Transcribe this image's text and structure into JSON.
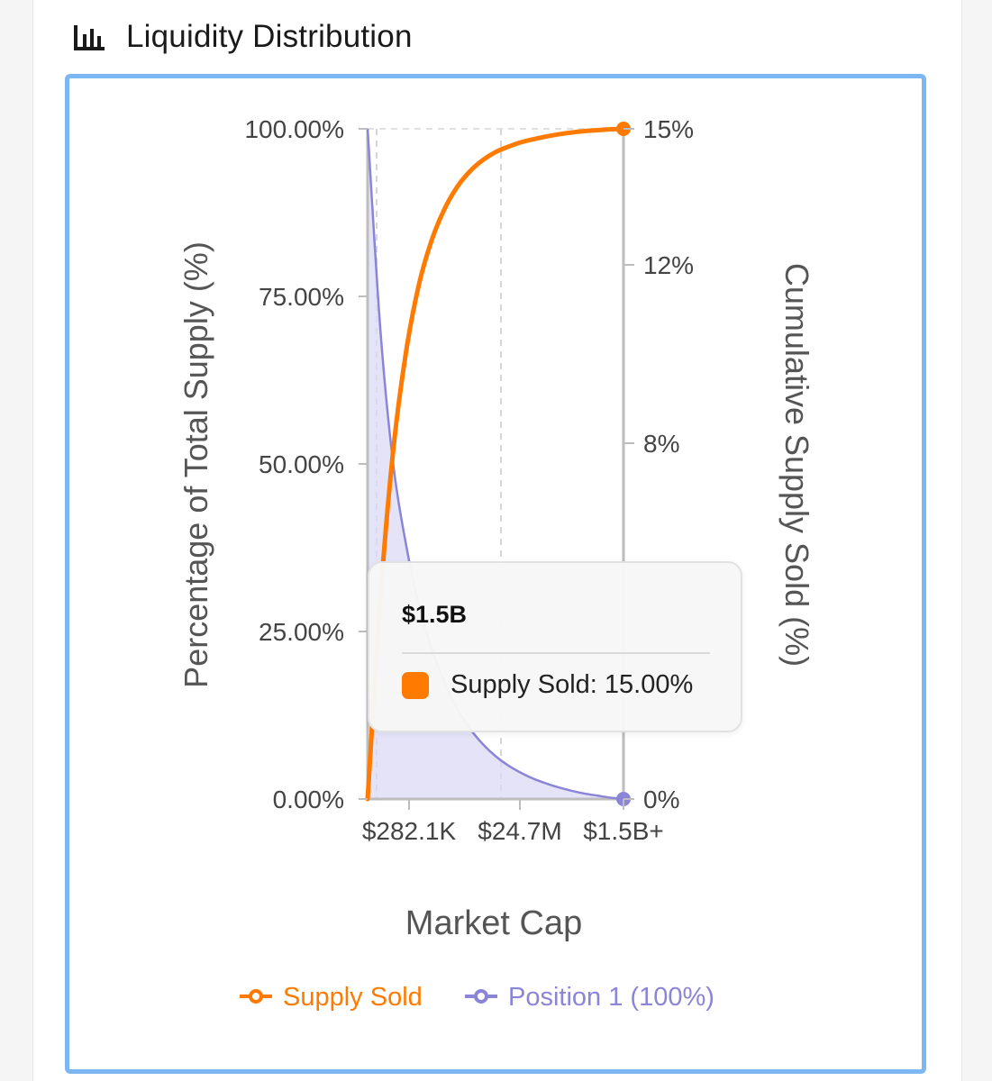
{
  "header": {
    "title": "Liquidity Distribution",
    "icon": "bar-chart-icon"
  },
  "tooltip": {
    "title": "$1.5B",
    "series_label": "Supply Sold: 15.00%",
    "swatch_color": "#ff7a00"
  },
  "colors": {
    "supply": "#ff7a00",
    "position": "#8b85d8",
    "position_fill": "#dcd9f6",
    "border": "#7db7f2"
  },
  "chart_data": {
    "type": "line",
    "xlabel": "Market Cap",
    "ylabel_left": "Percentage of Total Supply (%)",
    "ylabel_right": "Cumulative Supply Sold (%)",
    "x_ticks": [
      "$282.1K",
      "$24.7M",
      "$1.5B+"
    ],
    "y_left_ticks": [
      "0.00%",
      "25.00%",
      "50.00%",
      "75.00%",
      "100.00%"
    ],
    "y_right_ticks": [
      "0%",
      "8%",
      "12%",
      "15%"
    ],
    "y_left_range": [
      0,
      100
    ],
    "y_right_range": [
      0,
      15
    ],
    "x": [
      0,
      0.05,
      0.1,
      0.15,
      0.2,
      0.25,
      0.3,
      0.35,
      0.4,
      0.45,
      0.5,
      0.55,
      0.6,
      0.65,
      0.7,
      0.75,
      0.8,
      0.85,
      0.9,
      0.95,
      1.0
    ],
    "series": [
      {
        "name": "Supply Sold",
        "axis": "right",
        "values": [
          0,
          4.5,
          7.8,
          10.0,
          11.5,
          12.5,
          13.2,
          13.7,
          14.05,
          14.3,
          14.48,
          14.6,
          14.7,
          14.77,
          14.83,
          14.88,
          14.92,
          14.95,
          14.97,
          14.99,
          15.0
        ]
      },
      {
        "name": "Position 1 (100%)",
        "axis": "left",
        "values": [
          100,
          70,
          50,
          38,
          29,
          22.5,
          17.5,
          13.5,
          10.5,
          8.2,
          6.4,
          5.0,
          3.9,
          3.0,
          2.3,
          1.7,
          1.2,
          0.8,
          0.5,
          0.2,
          0
        ]
      }
    ],
    "grid": "vertical-dashed",
    "legend_position": "bottom-center"
  }
}
